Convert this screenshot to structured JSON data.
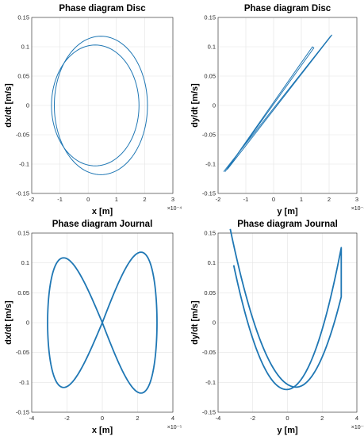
{
  "colors": {
    "series": "#1f77b4"
  },
  "chart_data": [
    {
      "type": "line",
      "title": "Phase diagram Disc",
      "xlabel": "x [m]",
      "ylabel": "dx/dt [m/s]",
      "x_exponent": "×10⁻⁴",
      "xlim": [
        -0.0002,
        0.0003
      ],
      "ylim": [
        -0.15,
        0.15
      ],
      "xticks": [
        -0.0002,
        -0.0001,
        0,
        0.0001,
        0.0002,
        0.0003
      ],
      "xtick_labels": [
        "-2",
        "-1",
        "0",
        "1",
        "2",
        "3"
      ],
      "yticks": [
        -0.15,
        -0.1,
        -0.05,
        0,
        0.05,
        0.1,
        0.15
      ],
      "ytick_labels": [
        "-0.15",
        "-0.1",
        "-0.05",
        "0",
        "0.05",
        "0.1",
        "0.15"
      ],
      "grid": true,
      "curve": {
        "kind": "ellipse-pair",
        "a": {
          "cx": 2.5e-05,
          "cy": 0.0,
          "rx": 0.000155,
          "ry": 0.103
        },
        "b": {
          "cx": 4.5e-05,
          "cy": 0.0,
          "rx": 0.000165,
          "ry": 0.118
        },
        "width": 1.0
      }
    },
    {
      "type": "line",
      "title": "Phase diagram Disc",
      "xlabel": "y [m]",
      "ylabel": "dy/dt [m/s]",
      "x_exponent": "×10⁻⁴",
      "xlim": [
        -0.0002,
        0.0003
      ],
      "ylim": [
        -0.15,
        0.15
      ],
      "xticks": [
        -0.0002,
        -0.0001,
        0,
        0.0001,
        0.0002,
        0.0003
      ],
      "xtick_labels": [
        "-2",
        "-1",
        "0",
        "1",
        "2",
        "3"
      ],
      "yticks": [
        -0.15,
        -0.1,
        -0.05,
        0,
        0.05,
        0.1,
        0.15
      ],
      "ytick_labels": [
        "-0.15",
        "-0.1",
        "-0.05",
        "0",
        "0.05",
        "0.1",
        "0.15"
      ],
      "grid": true,
      "curve": {
        "kind": "polyline",
        "points": [
          [
            -0.000175,
            -0.113
          ],
          [
            0.00014,
            0.1
          ],
          [
            0.000145,
            0.098
          ],
          [
            -0.00017,
            -0.11
          ],
          [
            -0.000165,
            -0.108
          ],
          [
            0.00021,
            0.12
          ],
          [
            0.000205,
            0.118
          ],
          [
            -0.00018,
            -0.113
          ]
        ],
        "width": 1.0
      }
    },
    {
      "type": "line",
      "title": "Phase diagram Journal",
      "xlabel": "x [m]",
      "ylabel": "dx/dt [m/s]",
      "x_exponent": "×10⁻⁵",
      "xlim": [
        -4e-05,
        4e-05
      ],
      "ylim": [
        -0.15,
        0.15
      ],
      "xticks": [
        -4e-05,
        -2e-05,
        0,
        2e-05,
        4e-05
      ],
      "xtick_labels": [
        "-4",
        "-2",
        "0",
        "2",
        "4"
      ],
      "yticks": [
        -0.15,
        -0.1,
        -0.05,
        0,
        0.05,
        0.1,
        0.15
      ],
      "ytick_labels": [
        "-0.15",
        "-0.1",
        "-0.05",
        "0",
        "0.05",
        "0.1",
        "0.15"
      ],
      "grid": true,
      "curve": {
        "kind": "figure-eight",
        "x_amp": 3.1e-05,
        "y_amp": 0.118,
        "width": 1.8
      }
    },
    {
      "type": "line",
      "title": "Phase diagram Journal",
      "xlabel": "y [m]",
      "ylabel": "dy/dt [m/s]",
      "x_exponent": "×10⁻⁵",
      "xlim": [
        -4e-05,
        4e-05
      ],
      "ylim": [
        -0.15,
        0.15
      ],
      "xticks": [
        -4e-05,
        -2e-05,
        0,
        2e-05,
        4e-05
      ],
      "xtick_labels": [
        "-4",
        "-2",
        "0",
        "2",
        "4"
      ],
      "yticks": [
        -0.15,
        -0.1,
        -0.05,
        0,
        0.05,
        0.1,
        0.15
      ],
      "ytick_labels": [
        "-0.15",
        "-0.1",
        "-0.05",
        "0",
        "0.05",
        "0.1",
        "0.15"
      ],
      "grid": true,
      "curve": {
        "kind": "v-shape",
        "x_amp": 3.1e-05,
        "width": 1.8
      }
    }
  ]
}
